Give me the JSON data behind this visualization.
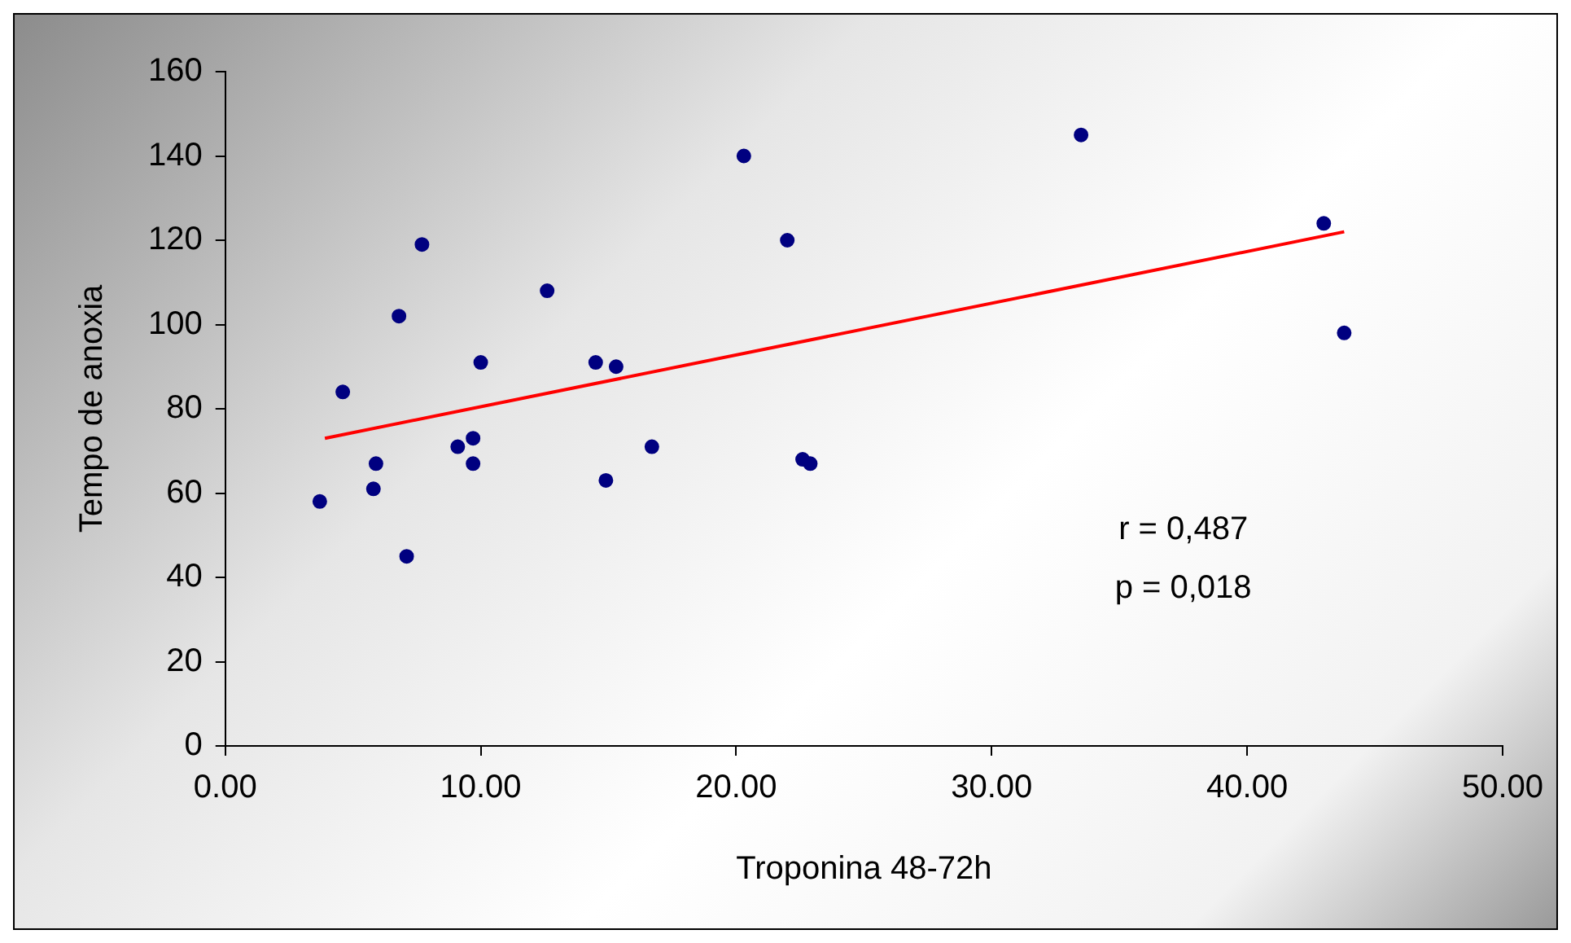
{
  "chart_data": {
    "type": "scatter",
    "xlabel": "Troponina 48-72h",
    "ylabel": "Tempo de anoxia",
    "xlim": [
      0,
      50
    ],
    "xticks": [
      {
        "value": 0,
        "label": "0.00"
      },
      {
        "value": 10,
        "label": "10.00"
      },
      {
        "value": 20,
        "label": "20.00"
      },
      {
        "value": 30,
        "label": "30.00"
      },
      {
        "value": 40,
        "label": "40.00"
      },
      {
        "value": 50,
        "label": "50.00"
      }
    ],
    "ylim": [
      0,
      160
    ],
    "yticks": [
      0,
      20,
      40,
      60,
      80,
      100,
      120,
      140,
      160
    ],
    "grid": false,
    "legend": false,
    "series": [
      {
        "marker": "circle",
        "color": "#000080",
        "x": [
          3.7,
          4.6,
          5.8,
          5.9,
          6.8,
          7.1,
          7.7,
          9.1,
          9.7,
          9.7,
          10.0,
          12.6,
          14.5,
          14.9,
          15.3,
          16.7,
          20.3,
          22.0,
          22.6,
          22.9,
          33.5,
          43.0,
          43.8
        ],
        "values": [
          58,
          84,
          61,
          67,
          102,
          45,
          119,
          71,
          73,
          67,
          91,
          108,
          91,
          63,
          90,
          71,
          140,
          120,
          68,
          67,
          145,
          124,
          98
        ]
      },
      {
        "type": "line",
        "marker": "none",
        "color": "#ff0000",
        "x": [
          3.9,
          43.8
        ],
        "values": [
          73,
          122
        ]
      }
    ],
    "annotations": [
      "r = 0,487",
      "p = 0,018"
    ]
  }
}
